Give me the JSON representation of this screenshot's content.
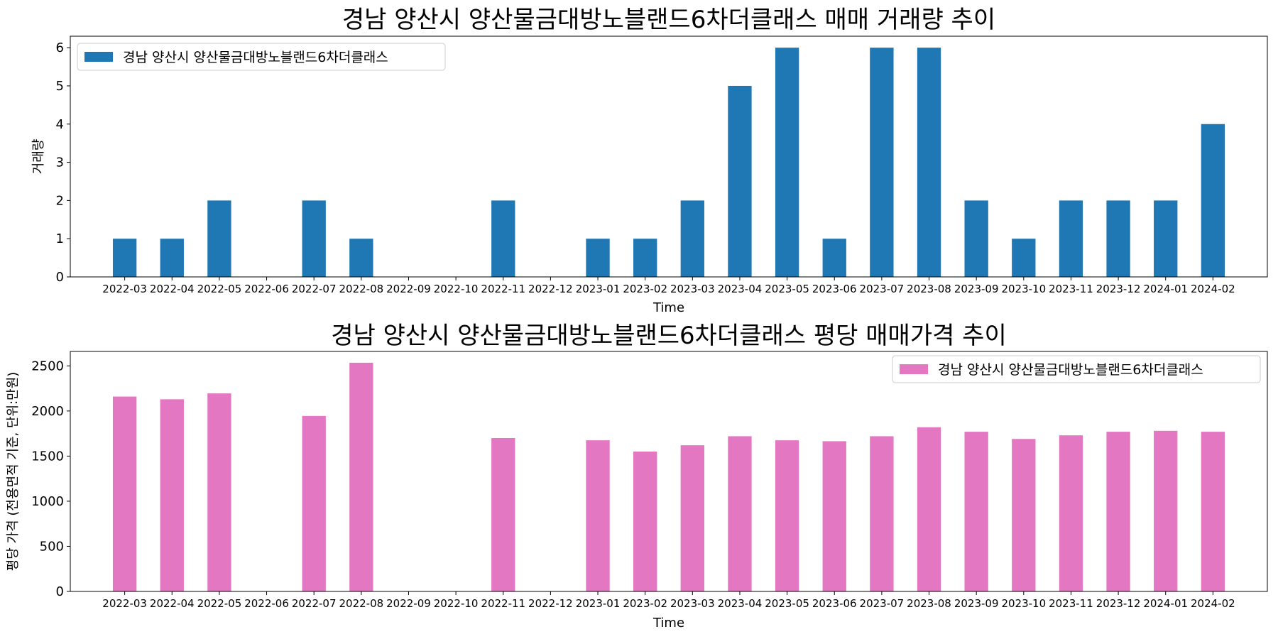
{
  "chart_data": [
    {
      "type": "bar",
      "title": "경남 양산시 양산물금대방노블랜드6차더클래스 매매 거래량 추이",
      "xlabel": "Time",
      "ylabel": "거래량",
      "ylim": [
        0,
        6.3
      ],
      "yticks": [
        0,
        1,
        2,
        3,
        4,
        5,
        6
      ],
      "legend_position": "top-left",
      "color": "#1f77b4",
      "categories": [
        "2022-03",
        "2022-04",
        "2022-05",
        "2022-06",
        "2022-07",
        "2022-08",
        "2022-09",
        "2022-10",
        "2022-11",
        "2022-12",
        "2023-01",
        "2023-02",
        "2023-03",
        "2023-04",
        "2023-05",
        "2023-06",
        "2023-07",
        "2023-08",
        "2023-09",
        "2023-10",
        "2023-11",
        "2023-12",
        "2024-01",
        "2024-02"
      ],
      "series": [
        {
          "name": "경남 양산시 양산물금대방노블랜드6차더클래스",
          "values": [
            1,
            1,
            2,
            0,
            2,
            1,
            0,
            0,
            2,
            0,
            1,
            1,
            2,
            5,
            6,
            1,
            6,
            6,
            2,
            1,
            2,
            2,
            2,
            4
          ]
        }
      ]
    },
    {
      "type": "bar",
      "title": "경남 양산시 양산물금대방노블랜드6차더클래스 평당 매매가격 추이",
      "xlabel": "Time",
      "ylabel": "평당 가격 (전용면적 기준, 단위:만원)",
      "ylim": [
        0,
        2660
      ],
      "yticks": [
        0,
        500,
        1000,
        1500,
        2000,
        2500
      ],
      "legend_position": "top-right",
      "color": "#e377c2",
      "categories": [
        "2022-03",
        "2022-04",
        "2022-05",
        "2022-06",
        "2022-07",
        "2022-08",
        "2022-09",
        "2022-10",
        "2022-11",
        "2022-12",
        "2023-01",
        "2023-02",
        "2023-03",
        "2023-04",
        "2023-05",
        "2023-06",
        "2023-07",
        "2023-08",
        "2023-09",
        "2023-10",
        "2023-11",
        "2023-12",
        "2024-01",
        "2024-02"
      ],
      "series": [
        {
          "name": "경남 양산시 양산물금대방노블랜드6차더클래스",
          "values": [
            2160,
            2130,
            2195,
            0,
            1945,
            2535,
            0,
            0,
            1700,
            0,
            1675,
            1550,
            1620,
            1720,
            1675,
            1665,
            1720,
            1820,
            1770,
            1690,
            1730,
            1770,
            1780,
            1770
          ]
        }
      ]
    }
  ]
}
